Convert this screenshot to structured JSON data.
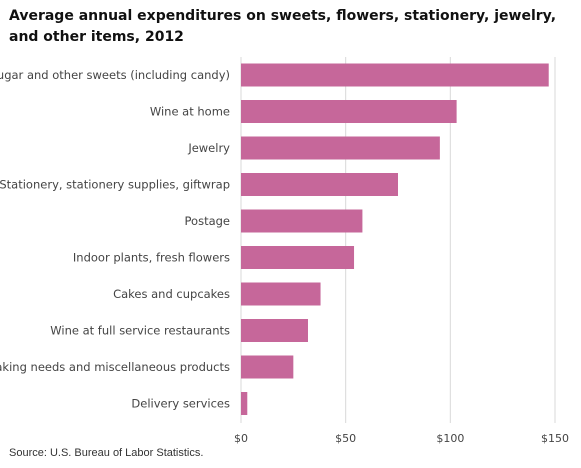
{
  "chart_data": {
    "type": "bar",
    "orientation": "horizontal",
    "title": "Average annual expenditures on sweets, flowers, stationery, jewelry, and other items, 2012",
    "categories": [
      "Sugar and other sweets (including candy)",
      "Wine at home",
      "Jewelry",
      "Stationery, stationery supplies, giftwrap",
      "Postage",
      "Indoor plants, fresh flowers",
      "Cakes and cupcakes",
      "Wine at full service restaurants",
      "Baking needs and miscellaneous products",
      "Delivery services"
    ],
    "values": [
      147,
      103,
      95,
      75,
      58,
      54,
      38,
      32,
      25,
      3
    ],
    "xlim": [
      0,
      150
    ],
    "xticks": [
      0,
      50,
      100,
      150
    ],
    "xtick_labels": [
      "$0",
      "$50",
      "$100",
      "$150"
    ],
    "xlabel": "",
    "ylabel": "",
    "grid": "vertical",
    "bar_color": "#c6679a",
    "grid_color": "#d9d9d9"
  },
  "source": "Source: U.S. Bureau of Labor Statistics."
}
